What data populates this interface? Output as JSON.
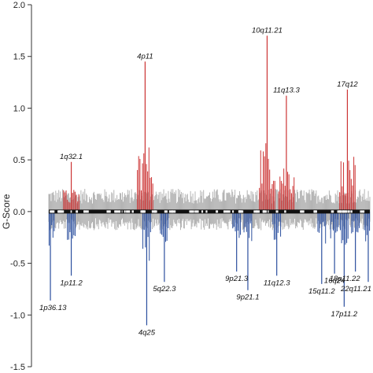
{
  "chart_data": {
    "type": "bar",
    "title": "",
    "xlabel": "",
    "ylabel": "G-Score",
    "ylim": [
      -1.5,
      2.0
    ],
    "yticks": [
      "2.0",
      "1.5",
      "1.0",
      "0.5",
      "0.0",
      "-0.5",
      "-1.0",
      "-1.5"
    ],
    "grid": false,
    "colors": {
      "amplification": "#cc3333",
      "deletion": "#2b4f9e",
      "background": "#b4b4b4",
      "chromosome_band": "#111111",
      "axis": "#333333"
    },
    "background_noise": {
      "amplitude_up": 0.22,
      "amplitude_down": 0.18,
      "description_hidden": true
    },
    "amplification_peaks": [
      {
        "label": "1q32.1",
        "position": 0.07,
        "value": 0.48
      },
      {
        "label": "4p11",
        "position": 0.3,
        "value": 1.45
      },
      {
        "label": "10q11.21",
        "position": 0.68,
        "value": 1.7
      },
      {
        "label": "11q13.3",
        "position": 0.74,
        "value": 1.12
      },
      {
        "label": "17q12",
        "position": 0.93,
        "value": 1.18
      }
    ],
    "deletion_peaks": [
      {
        "label": "1p11.2",
        "position": 0.07,
        "value": -0.62
      },
      {
        "label": "1p36.13",
        "position": 0.005,
        "value": -0.86
      },
      {
        "label": "4q25",
        "position": 0.305,
        "value": -1.1
      },
      {
        "label": "5q22.3",
        "position": 0.36,
        "value": -0.68
      },
      {
        "label": "9p21.3",
        "position": 0.585,
        "value": -0.58
      },
      {
        "label": "9p21.1",
        "position": 0.62,
        "value": -0.76
      },
      {
        "label": "11q12.3",
        "position": 0.71,
        "value": -0.62
      },
      {
        "label": "16q24",
        "position": 0.89,
        "value": -0.6
      },
      {
        "label": "15q11.2",
        "position": 0.85,
        "value": -0.7
      },
      {
        "label": "17p11.2",
        "position": 0.92,
        "value": -0.92
      },
      {
        "label": "18p11.22",
        "position": 0.955,
        "value": -0.58
      },
      {
        "label": "22q11.21",
        "position": 0.995,
        "value": -0.68
      }
    ]
  }
}
